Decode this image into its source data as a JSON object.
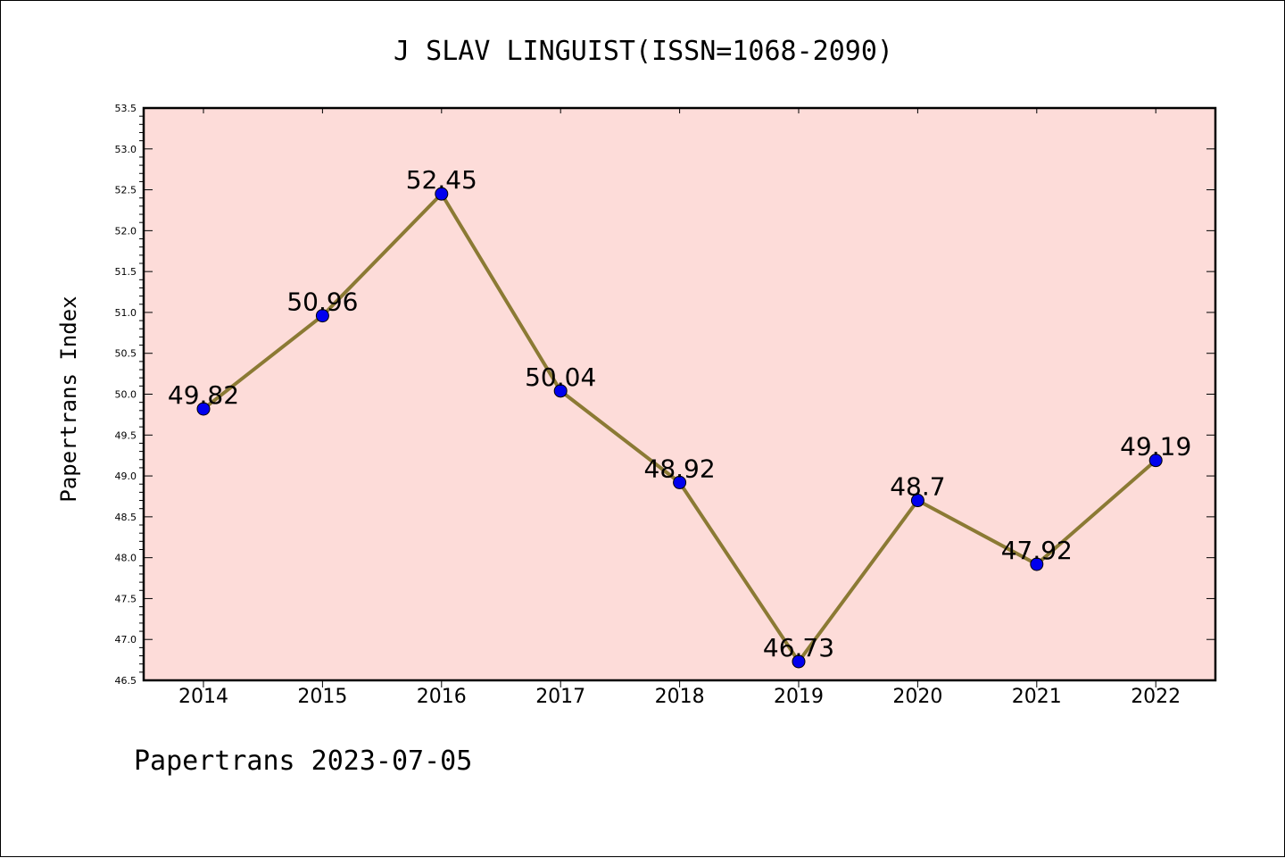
{
  "chart_data": {
    "type": "line",
    "title": "J SLAV LINGUIST(ISSN=1068-2090)",
    "xlabel": "",
    "ylabel": "Papertrans Index",
    "categories": [
      "2014",
      "2015",
      "2016",
      "2017",
      "2018",
      "2019",
      "2020",
      "2021",
      "2022"
    ],
    "values": [
      49.82,
      50.96,
      52.45,
      50.04,
      48.92,
      46.73,
      48.7,
      47.92,
      49.19
    ],
    "data_labels": [
      "49.82",
      "50.96",
      "52.45",
      "50.04",
      "48.92",
      "46.73",
      "48.7",
      "47.92",
      "49.19"
    ],
    "ylim": [
      46.5,
      53.5
    ],
    "yticks": [
      "46.5",
      "47.0",
      "47.5",
      "48.0",
      "48.5",
      "49.0",
      "49.5",
      "50.0",
      "50.5",
      "51.0",
      "51.5",
      "52.0",
      "52.5",
      "53.0",
      "53.5"
    ],
    "grid": false,
    "legend": "none",
    "colors": {
      "plot_background": "#fddcd9",
      "line": "#8b7a34",
      "marker": "#0000ee"
    }
  },
  "footer": {
    "text": "Papertrans 2023-07-05"
  }
}
